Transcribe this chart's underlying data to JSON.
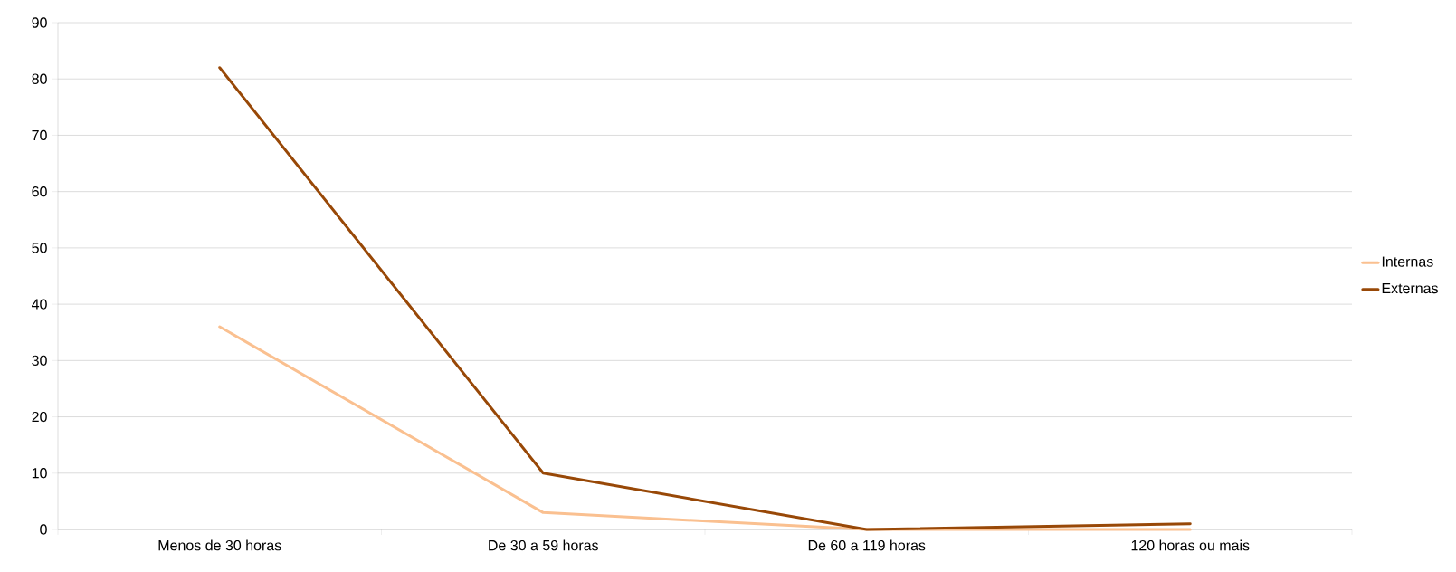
{
  "chart_data": {
    "type": "line",
    "categories": [
      "Menos de 30 horas",
      "De 30 a 59 horas",
      "De 60 a 119 horas",
      "120 horas ou mais"
    ],
    "series": [
      {
        "name": "Internas",
        "color": "#fac090",
        "values": [
          36,
          3,
          0,
          0
        ]
      },
      {
        "name": "Externas",
        "color": "#984807",
        "values": [
          82,
          10,
          0,
          1
        ]
      }
    ],
    "ylim": [
      0,
      90
    ],
    "yticks": [
      0,
      10,
      20,
      30,
      40,
      50,
      60,
      70,
      80,
      90
    ],
    "grid": "y",
    "legend": "right",
    "marker": "none",
    "line_style": "solid"
  }
}
